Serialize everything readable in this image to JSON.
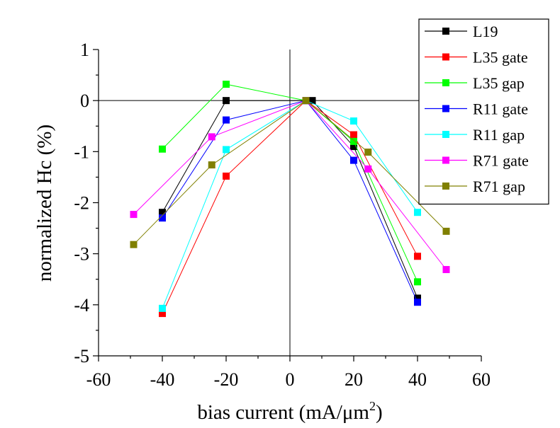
{
  "chart_data": {
    "type": "line",
    "title": "",
    "xlabel": "bias current (mA/μm",
    "xlabel_superscript": "2",
    "xlabel_close": ")",
    "ylabel": "normalized Hc (%)",
    "xlim": [
      -60,
      60
    ],
    "ylim": [
      -5,
      1
    ],
    "xticks": [
      -60,
      -40,
      -20,
      0,
      20,
      40,
      60
    ],
    "yticks": [
      -5,
      -4,
      -3,
      -2,
      -1,
      0,
      1
    ],
    "grid": false,
    "zero_lines": true,
    "legend_position": "top-right",
    "marker": "square",
    "series": [
      {
        "name": "L19",
        "color": "#000000",
        "x": [
          -40,
          -20,
          5,
          7,
          20,
          40
        ],
        "y": [
          -2.19,
          0.0,
          0.0,
          0.0,
          -0.9,
          -3.87
        ]
      },
      {
        "name": "L35 gate",
        "color": "#ff0000",
        "x": [
          -40,
          -20,
          5,
          20,
          40
        ],
        "y": [
          -4.17,
          -1.48,
          0.0,
          -0.67,
          -3.05
        ]
      },
      {
        "name": "L35 gap",
        "color": "#00ff00",
        "x": [
          -40,
          -20,
          5,
          20,
          40
        ],
        "y": [
          -0.95,
          0.32,
          0.0,
          -0.8,
          -3.55
        ]
      },
      {
        "name": "R11 gate",
        "color": "#0000ff",
        "x": [
          -40,
          -20,
          5,
          20,
          40
        ],
        "y": [
          -2.3,
          -0.38,
          0.0,
          -1.17,
          -3.95
        ]
      },
      {
        "name": "R11 gap",
        "color": "#00ffff",
        "x": [
          -40,
          -20,
          5,
          20,
          40
        ],
        "y": [
          -4.07,
          -0.96,
          0.0,
          -0.4,
          -2.19
        ]
      },
      {
        "name": "R71 gate",
        "color": "#ff00ff",
        "x": [
          -49,
          -24.5,
          5,
          24.5,
          49
        ],
        "y": [
          -2.23,
          -0.71,
          0.0,
          -1.34,
          -3.31
        ]
      },
      {
        "name": "R71 gap",
        "color": "#808000",
        "x": [
          -49,
          -24.5,
          5,
          24.5,
          49
        ],
        "y": [
          -2.82,
          -1.26,
          0.0,
          -1.01,
          -2.56
        ]
      }
    ]
  }
}
